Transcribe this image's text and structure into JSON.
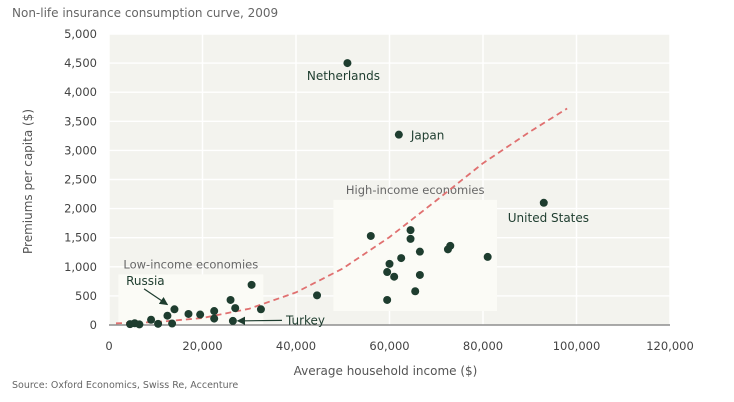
{
  "title": "Non-life insurance consumption curve, 2009",
  "source": "Source: Oxford Economics, Swiss Re, Accenture",
  "chart_data": {
    "type": "scatter",
    "title": "Non-life insurance consumption curve, 2009",
    "xlabel": "Average household income ($)",
    "ylabel": "Premiums per capita ($)",
    "xlim": [
      0,
      120000
    ],
    "ylim": [
      0,
      5000
    ],
    "xticks": [
      0,
      20000,
      40000,
      60000,
      80000,
      100000,
      120000
    ],
    "yticks": [
      0,
      500,
      1000,
      1500,
      2000,
      2500,
      3000,
      3500,
      4000,
      4500,
      5000
    ],
    "xtick_labels": [
      "0",
      "20,000",
      "40,000",
      "60,000",
      "80,000",
      "100,000",
      "120,000"
    ],
    "ytick_labels": [
      "0",
      "500",
      "1,000",
      "1,500",
      "2,000",
      "2,500",
      "3,000",
      "3,500",
      "4,000",
      "4,500",
      "5,000"
    ],
    "grid": "horizontal and vertical",
    "regions": [
      {
        "label": "Low-income economies",
        "x": [
          2000,
          33000
        ],
        "y": [
          0,
          870
        ]
      },
      {
        "label": "High-income economies",
        "x": [
          48000,
          83000
        ],
        "y": [
          240,
          2150
        ]
      }
    ],
    "trend": {
      "style": "dashed",
      "color": "#e07070",
      "x": [
        1500,
        10000,
        20000,
        30000,
        40000,
        50000,
        60000,
        70000,
        80000,
        90000,
        98000
      ],
      "y": [
        30,
        50,
        120,
        280,
        560,
        970,
        1510,
        2140,
        2780,
        3320,
        3720
      ]
    },
    "point_color": "#1e3d2f",
    "points": [
      {
        "x": 4500,
        "y": 15
      },
      {
        "x": 5500,
        "y": 30
      },
      {
        "x": 6500,
        "y": 10
      },
      {
        "x": 9000,
        "y": 90
      },
      {
        "x": 10500,
        "y": 20
      },
      {
        "x": 12500,
        "y": 160
      },
      {
        "x": 13500,
        "y": 25
      },
      {
        "x": 14000,
        "y": 270
      },
      {
        "x": 17000,
        "y": 190
      },
      {
        "x": 19500,
        "y": 180
      },
      {
        "x": 22500,
        "y": 110
      },
      {
        "x": 22500,
        "y": 240
      },
      {
        "x": 26000,
        "y": 430
      },
      {
        "x": 26500,
        "y": 70
      },
      {
        "x": 27000,
        "y": 290
      },
      {
        "x": 30500,
        "y": 690
      },
      {
        "x": 32500,
        "y": 270
      },
      {
        "x": 44500,
        "y": 510
      },
      {
        "x": 56000,
        "y": 1530
      },
      {
        "x": 59500,
        "y": 430
      },
      {
        "x": 59500,
        "y": 910
      },
      {
        "x": 60000,
        "y": 1050
      },
      {
        "x": 61000,
        "y": 830
      },
      {
        "x": 62500,
        "y": 1150
      },
      {
        "x": 64500,
        "y": 1630
      },
      {
        "x": 64500,
        "y": 1480
      },
      {
        "x": 65500,
        "y": 580
      },
      {
        "x": 66500,
        "y": 1260
      },
      {
        "x": 66500,
        "y": 860
      },
      {
        "x": 72500,
        "y": 1300
      },
      {
        "x": 73000,
        "y": 1360
      },
      {
        "x": 81000,
        "y": 1170
      },
      {
        "x": 51000,
        "y": 4500,
        "label": "Netherlands"
      },
      {
        "x": 62000,
        "y": 3270,
        "label": "Japan"
      },
      {
        "x": 93000,
        "y": 2100,
        "label": "United States"
      }
    ],
    "annotations": [
      {
        "label": "Russia",
        "arrow_from": [
          7500,
          620
        ],
        "arrow_to": [
          12500,
          350
        ]
      },
      {
        "label": "Turkey",
        "arrow_from": [
          37000,
          80
        ],
        "arrow_to": [
          27500,
          70
        ]
      }
    ]
  }
}
